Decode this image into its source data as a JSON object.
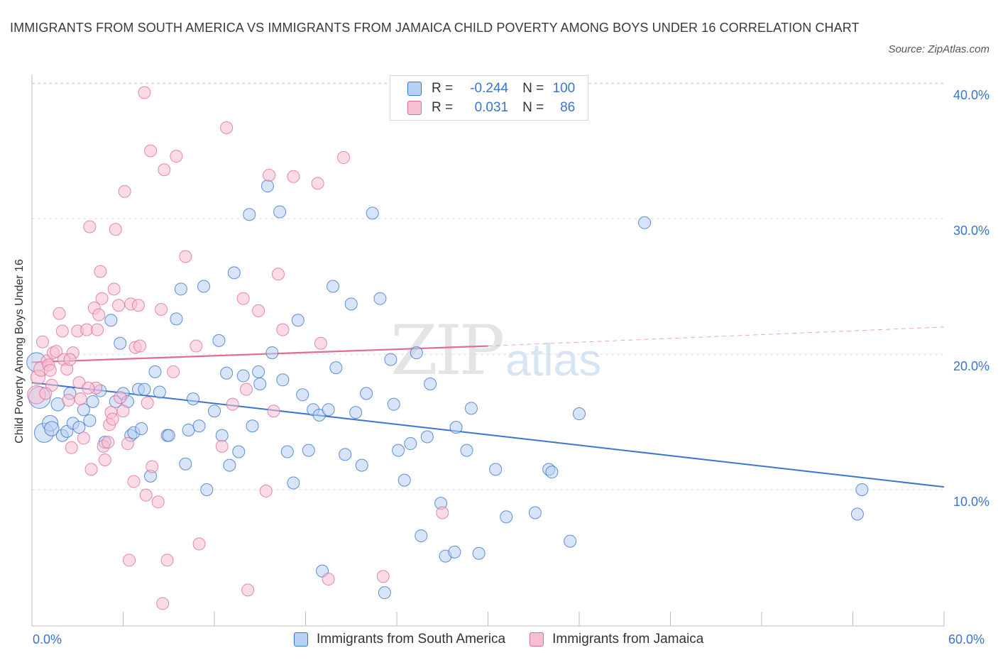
{
  "title": "IMMIGRANTS FROM SOUTH AMERICA VS IMMIGRANTS FROM JAMAICA CHILD POVERTY AMONG BOYS UNDER 16 CORRELATION CHART",
  "source": "Source: ZipAtlas.com",
  "watermark": {
    "zip": "ZIP",
    "atlas": "atlas"
  },
  "colors": {
    "blue": "#3a74d0",
    "blue_fill": "#b8d0f3",
    "pink": "#e26b96",
    "pink_fill": "#f7bfd2"
  },
  "legend": {
    "r_label": "R =",
    "n_label": "N =",
    "rows": [
      {
        "r": "-0.244",
        "n": "100"
      },
      {
        "r": "0.031",
        "n": "86"
      }
    ]
  },
  "chart_data": {
    "type": "scatter",
    "title": "IMMIGRANTS FROM SOUTH AMERICA VS IMMIGRANTS FROM JAMAICA CHILD POVERTY AMONG BOYS UNDER 16 CORRELATION CHART",
    "xlabel": "",
    "ylabel": "Child Poverty Among Boys Under 16",
    "xlim": [
      0,
      60
    ],
    "ylim": [
      0,
      40
    ],
    "x_tick_labels": [
      "0.0%",
      "60.0%"
    ],
    "y_tick_labels": [
      "10.0%",
      "20.0%",
      "30.0%",
      "40.0%"
    ],
    "y_ticks": [
      10,
      20,
      30,
      40
    ],
    "grid": true,
    "legend_position": "top-center",
    "series": [
      {
        "name": "Immigrants from South America",
        "color": "#3a74d0",
        "trend": [
          [
            0,
            17.9
          ],
          [
            60,
            10.2
          ]
        ],
        "points": [
          [
            0.3,
            19.4,
            1.6
          ],
          [
            0.5,
            16.8,
            1.8
          ],
          [
            0.8,
            14.2,
            1.6
          ],
          [
            1.2,
            14.9,
            1.3
          ],
          [
            1.3,
            14.5,
            1.2
          ],
          [
            1.7,
            16.3,
            1.1
          ],
          [
            2.0,
            14.0,
            1.0
          ],
          [
            2.3,
            14.3,
            1.0
          ],
          [
            2.5,
            17.1,
            1.0
          ],
          [
            2.7,
            14.9,
            1.0
          ],
          [
            3.1,
            14.6,
            1.0
          ],
          [
            3.4,
            15.9,
            1.0
          ],
          [
            3.8,
            15.1,
            1.0
          ],
          [
            4.0,
            16.5,
            1.0
          ],
          [
            4.5,
            17.3,
            1.0
          ],
          [
            4.8,
            13.5,
            1.0
          ],
          [
            5.2,
            22.5,
            1.0
          ],
          [
            5.5,
            16.5,
            1.0
          ],
          [
            5.8,
            20.8,
            1.0
          ],
          [
            6.0,
            17.1,
            1.0
          ],
          [
            6.3,
            16.5,
            1.0
          ],
          [
            6.5,
            14.0,
            1.0
          ],
          [
            6.7,
            14.2,
            1.0
          ],
          [
            7.0,
            17.4,
            1.0
          ],
          [
            7.2,
            14.5,
            1.0
          ],
          [
            7.4,
            17.4,
            1.0
          ],
          [
            7.8,
            11.0,
            1.0
          ],
          [
            8.1,
            18.7,
            1.0
          ],
          [
            8.4,
            17.2,
            1.0
          ],
          [
            8.9,
            14.0,
            1.0
          ],
          [
            9.0,
            14.0,
            1.0
          ],
          [
            9.5,
            22.6,
            1.0
          ],
          [
            9.8,
            24.8,
            1.0
          ],
          [
            10.1,
            11.9,
            1.0
          ],
          [
            10.3,
            14.4,
            1.0
          ],
          [
            10.6,
            16.7,
            1.0
          ],
          [
            11.0,
            14.7,
            1.0
          ],
          [
            11.3,
            25.0,
            1.0
          ],
          [
            11.5,
            10.0,
            1.0
          ],
          [
            12.0,
            15.8,
            1.0
          ],
          [
            12.3,
            21.0,
            1.0
          ],
          [
            12.5,
            14.0,
            1.0
          ],
          [
            12.8,
            18.6,
            1.0
          ],
          [
            13.0,
            11.8,
            1.0
          ],
          [
            13.3,
            26.0,
            1.0
          ],
          [
            13.6,
            12.8,
            1.0
          ],
          [
            13.9,
            18.4,
            1.0
          ],
          [
            14.3,
            30.3,
            1.0
          ],
          [
            14.5,
            14.7,
            1.0
          ],
          [
            14.9,
            18.7,
            1.0
          ],
          [
            15.0,
            17.8,
            1.0
          ],
          [
            15.5,
            32.4,
            1.0
          ],
          [
            15.8,
            20.1,
            1.0
          ],
          [
            16.3,
            30.5,
            1.0
          ],
          [
            16.5,
            18.1,
            1.0
          ],
          [
            16.8,
            12.8,
            1.0
          ],
          [
            17.2,
            10.5,
            1.0
          ],
          [
            17.5,
            22.5,
            1.0
          ],
          [
            17.8,
            17.0,
            1.0
          ],
          [
            18.2,
            12.9,
            1.0
          ],
          [
            18.5,
            15.9,
            1.0
          ],
          [
            18.9,
            15.5,
            1.0
          ],
          [
            19.1,
            4.0,
            1.0
          ],
          [
            19.5,
            15.9,
            1.0
          ],
          [
            19.8,
            25.0,
            1.0
          ],
          [
            20.0,
            19.0,
            1.0
          ],
          [
            20.6,
            12.6,
            1.0
          ],
          [
            21.0,
            23.7,
            1.0
          ],
          [
            21.3,
            15.7,
            1.0
          ],
          [
            21.7,
            11.8,
            1.0
          ],
          [
            22.0,
            17.1,
            1.0
          ],
          [
            22.4,
            30.4,
            1.0
          ],
          [
            22.9,
            24.1,
            1.0
          ],
          [
            23.2,
            2.4,
            1.0
          ],
          [
            23.6,
            19.6,
            1.0
          ],
          [
            23.8,
            16.3,
            1.0
          ],
          [
            24.1,
            12.9,
            1.0
          ],
          [
            24.5,
            10.7,
            1.0
          ],
          [
            24.9,
            13.4,
            1.0
          ],
          [
            25.3,
            20.1,
            1.0
          ],
          [
            25.6,
            6.6,
            1.0
          ],
          [
            26.0,
            13.9,
            1.0
          ],
          [
            26.2,
            17.8,
            1.0
          ],
          [
            26.9,
            9.0,
            1.0
          ],
          [
            27.2,
            5.1,
            1.0
          ],
          [
            27.9,
            14.6,
            1.0
          ],
          [
            27.8,
            5.4,
            1.0
          ],
          [
            28.6,
            12.9,
            1.0
          ],
          [
            28.9,
            16.0,
            1.0
          ],
          [
            29.4,
            5.3,
            1.0
          ],
          [
            30.5,
            11.5,
            1.0
          ],
          [
            31.2,
            8.0,
            1.0
          ],
          [
            33.1,
            8.3,
            1.0
          ],
          [
            34.0,
            11.5,
            1.0
          ],
          [
            34.2,
            11.3,
            1.0
          ],
          [
            35.4,
            6.2,
            1.0
          ],
          [
            36.0,
            15.6,
            1.0
          ],
          [
            40.3,
            29.7,
            1.0
          ],
          [
            54.6,
            10.0,
            1.0
          ],
          [
            54.3,
            8.2,
            1.0
          ]
        ]
      },
      {
        "name": "Immigrants from Jamaica",
        "color": "#e26b96",
        "trend": [
          [
            0,
            19.4
          ],
          [
            30,
            20.6
          ]
        ],
        "trend_extension": [
          [
            30,
            20.6
          ],
          [
            60,
            22.0
          ]
        ],
        "points": [
          [
            0.3,
            17.0,
            1.5
          ],
          [
            0.4,
            18.3,
            1.2
          ],
          [
            0.6,
            18.9,
            1.2
          ],
          [
            0.7,
            20.9,
            1.0
          ],
          [
            1.0,
            19.5,
            1.0
          ],
          [
            1.1,
            19.2,
            1.0
          ],
          [
            1.2,
            18.8,
            1.0
          ],
          [
            1.3,
            17.7,
            1.0
          ],
          [
            1.4,
            20.1,
            1.0
          ],
          [
            1.6,
            20.2,
            1.0
          ],
          [
            1.8,
            23.0,
            1.0
          ],
          [
            2.0,
            21.7,
            1.0
          ],
          [
            2.1,
            19.6,
            1.0
          ],
          [
            2.3,
            18.9,
            1.0
          ],
          [
            2.4,
            16.6,
            1.0
          ],
          [
            2.6,
            13.1,
            1.0
          ],
          [
            2.7,
            20.1,
            1.0
          ],
          [
            3.0,
            21.7,
            1.0
          ],
          [
            3.1,
            17.9,
            1.0
          ],
          [
            3.2,
            16.7,
            1.0
          ],
          [
            3.4,
            13.8,
            1.0
          ],
          [
            3.6,
            21.8,
            1.0
          ],
          [
            3.8,
            29.4,
            1.0
          ],
          [
            3.9,
            11.5,
            1.0
          ],
          [
            4.1,
            23.4,
            1.0
          ],
          [
            4.2,
            17.5,
            1.0
          ],
          [
            4.3,
            21.8,
            1.0
          ],
          [
            4.4,
            22.9,
            1.0
          ],
          [
            4.5,
            26.1,
            1.0
          ],
          [
            4.6,
            24.1,
            1.0
          ],
          [
            4.7,
            13.2,
            1.0
          ],
          [
            4.8,
            12.2,
            1.0
          ],
          [
            5.0,
            13.5,
            1.0
          ],
          [
            5.1,
            14.8,
            1.0
          ],
          [
            5.2,
            15.7,
            1.0
          ],
          [
            5.4,
            24.8,
            1.0
          ],
          [
            5.5,
            29.2,
            1.0
          ],
          [
            5.7,
            23.6,
            1.0
          ],
          [
            5.8,
            16.8,
            1.0
          ],
          [
            6.0,
            15.8,
            1.0
          ],
          [
            6.1,
            32.0,
            1.0
          ],
          [
            6.3,
            13.4,
            1.0
          ],
          [
            6.4,
            4.8,
            1.0
          ],
          [
            6.5,
            23.7,
            1.0
          ],
          [
            6.7,
            10.6,
            1.0
          ],
          [
            6.8,
            20.5,
            1.0
          ],
          [
            7.0,
            23.6,
            1.0
          ],
          [
            7.1,
            20.6,
            1.0
          ],
          [
            7.4,
            39.3,
            1.0
          ],
          [
            7.5,
            9.6,
            1.0
          ],
          [
            7.6,
            16.4,
            1.0
          ],
          [
            7.8,
            35.0,
            1.0
          ],
          [
            7.9,
            11.7,
            1.0
          ],
          [
            8.3,
            9.1,
            1.0
          ],
          [
            8.5,
            23.3,
            1.0
          ],
          [
            8.6,
            1.6,
            1.0
          ],
          [
            8.7,
            33.6,
            1.0
          ],
          [
            8.9,
            4.8,
            1.0
          ],
          [
            9.3,
            18.7,
            1.0
          ],
          [
            9.5,
            34.6,
            1.0
          ],
          [
            10.1,
            27.2,
            1.0
          ],
          [
            10.8,
            20.6,
            1.0
          ],
          [
            11.0,
            6.0,
            1.0
          ],
          [
            12.5,
            13.2,
            1.0
          ],
          [
            12.8,
            36.7,
            1.0
          ],
          [
            13.2,
            16.3,
            1.0
          ],
          [
            13.9,
            24.1,
            1.0
          ],
          [
            14.1,
            17.4,
            1.0
          ],
          [
            14.2,
            2.6,
            1.0
          ],
          [
            14.9,
            23.2,
            1.0
          ],
          [
            15.4,
            9.9,
            1.0
          ],
          [
            15.6,
            33.2,
            1.0
          ],
          [
            15.9,
            15.8,
            1.0
          ],
          [
            16.2,
            25.9,
            1.0
          ],
          [
            16.5,
            21.8,
            1.0
          ],
          [
            17.2,
            33.1,
            1.0
          ],
          [
            18.8,
            32.6,
            1.0
          ],
          [
            19.0,
            20.8,
            1.0
          ],
          [
            19.5,
            3.4,
            1.0
          ],
          [
            20.5,
            34.5,
            1.0
          ],
          [
            23.1,
            3.6,
            1.0
          ],
          [
            27.0,
            8.3,
            1.0
          ],
          [
            0.9,
            17.1,
            1.0
          ],
          [
            2.5,
            19.6,
            1.0
          ],
          [
            3.7,
            17.5,
            1.0
          ],
          [
            5.3,
            15.2,
            1.0
          ]
        ]
      }
    ]
  },
  "bottom_legend": [
    "Immigrants from South America",
    "Immigrants from Jamaica"
  ]
}
